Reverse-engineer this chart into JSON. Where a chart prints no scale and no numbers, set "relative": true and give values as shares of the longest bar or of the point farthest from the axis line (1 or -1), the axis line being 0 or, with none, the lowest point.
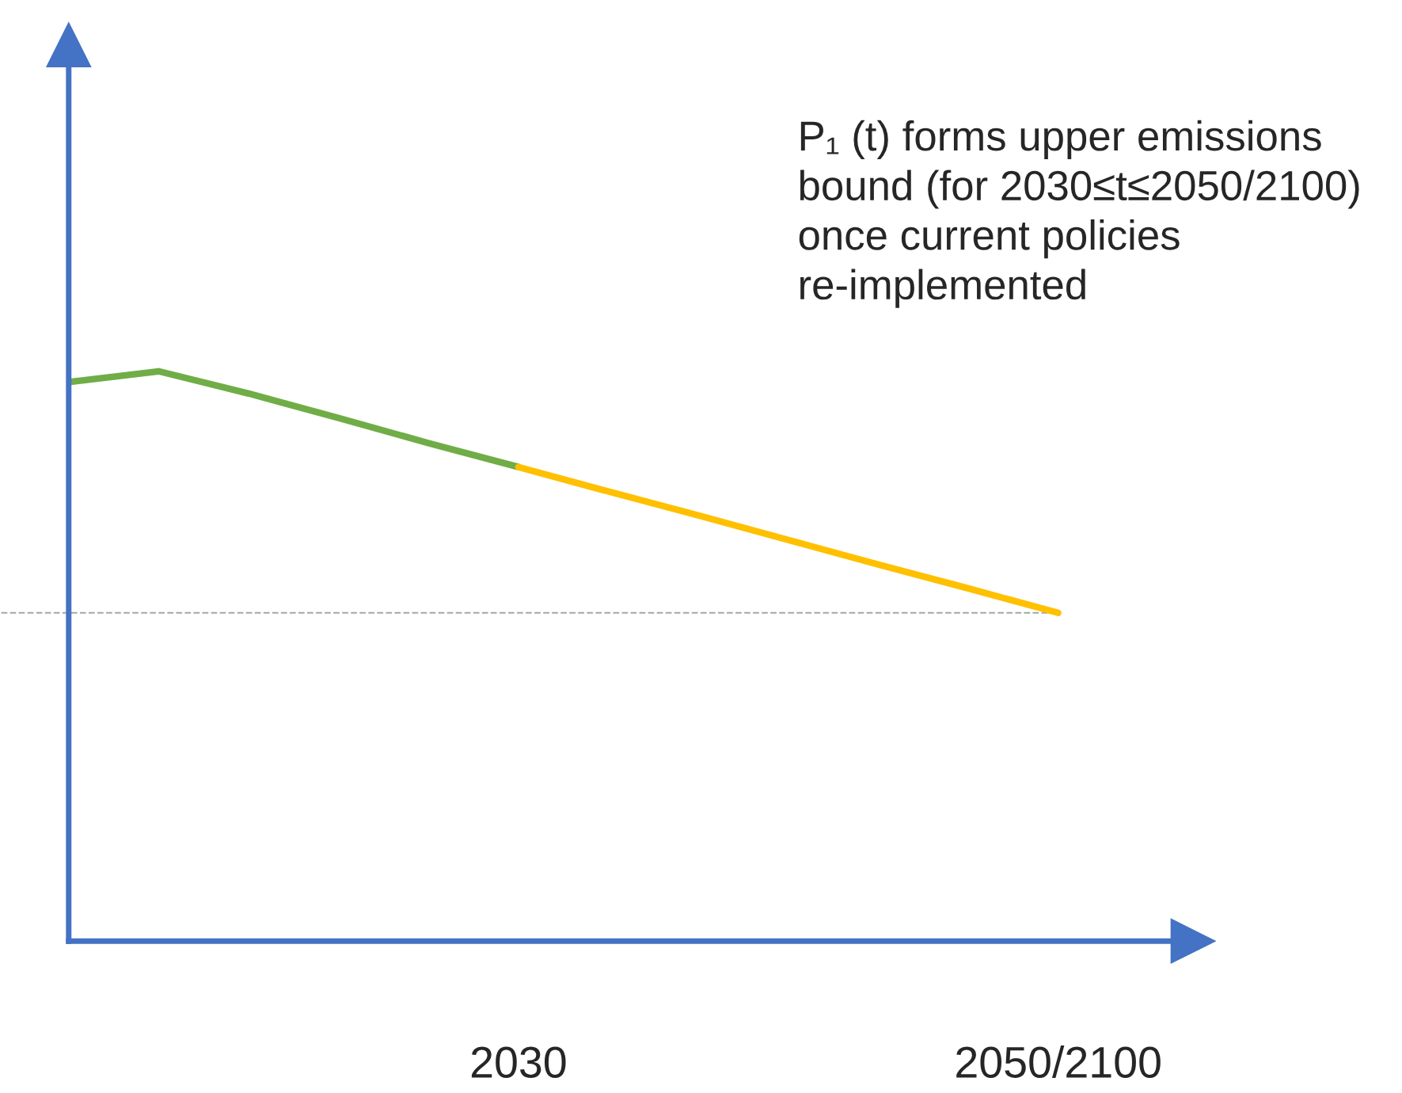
{
  "chart_data": {
    "type": "line",
    "relative": true,
    "categories": [
      null,
      null,
      null,
      null,
      null,
      "2030",
      null,
      null,
      null,
      null,
      null,
      "2050/2100"
    ],
    "series": [
      {
        "color": "#70ad47",
        "values": [
          0.981,
          1.0,
          0.961,
          0.918,
          0.874,
          0.832,
          null,
          null,
          null,
          null,
          null,
          null
        ]
      },
      {
        "color": "#ffc000",
        "values": [
          null,
          null,
          null,
          null,
          null,
          0.832,
          0.789,
          0.747,
          0.704,
          0.661,
          0.619,
          0.576
        ]
      }
    ],
    "ref_lines": [
      {
        "axis": "y",
        "value": 0.576,
        "color": "#a6a6a6",
        "line_style": "dashed"
      }
    ],
    "annotations": [
      "P₁ (t) forms upper emissions bound (for 2030≤t≤2050/2100) once current policies re-implemented"
    ],
    "grid": false,
    "legend": false
  }
}
